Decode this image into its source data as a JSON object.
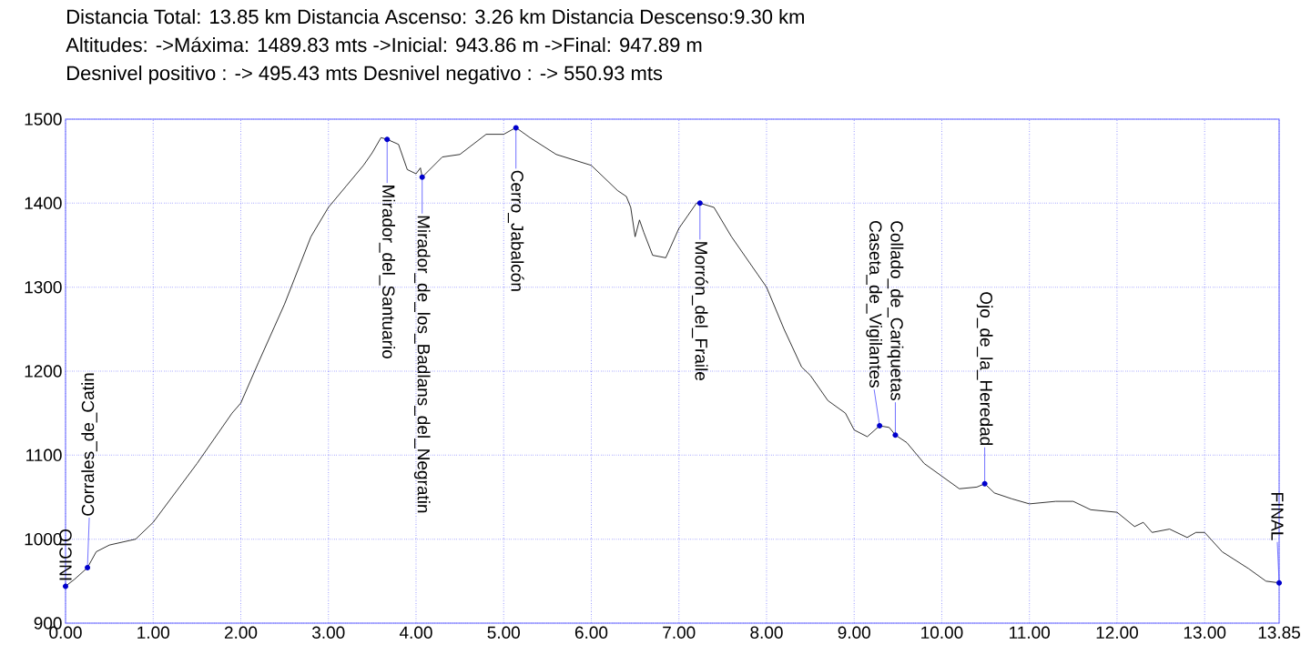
{
  "chart_data": {
    "type": "line",
    "title": "Distancia Total: 13.85 km    Distancia Ascenso: 3.26 km     Distancia Descenso:9.30 km",
    "subtitle": "Altitudes: ->Máxima: 1489.83 mts     ->Inicial: 943.86 m     ->Final: 947.89 m",
    "x": [
      0,
      0.1,
      0.25,
      0.35,
      0.5,
      0.8,
      1.0,
      1.5,
      1.9,
      2.0,
      2.2,
      2.5,
      2.8,
      3.0,
      3.2,
      3.4,
      3.5,
      3.6,
      3.67,
      3.8,
      3.9,
      4.0,
      4.05,
      4.07,
      4.3,
      4.5,
      4.8,
      5.0,
      5.14,
      5.3,
      5.6,
      6.0,
      6.3,
      6.4,
      6.45,
      6.5,
      6.55,
      6.6,
      6.7,
      6.85,
      7.0,
      7.1,
      7.2,
      7.24,
      7.4,
      7.6,
      7.9,
      8.0,
      8.2,
      8.4,
      8.5,
      8.7,
      8.9,
      9.0,
      9.15,
      9.29,
      9.4,
      9.47,
      9.6,
      9.8,
      10.0,
      10.2,
      10.4,
      10.49,
      10.6,
      10.8,
      11.0,
      11.3,
      11.5,
      11.7,
      12.0,
      12.2,
      12.3,
      12.4,
      12.6,
      12.8,
      12.9,
      13.0,
      13.2,
      13.5,
      13.7,
      13.85
    ],
    "series": [
      {
        "color": "#000000",
        "values": [
          944,
          952,
          966,
          985,
          993,
          1000,
          1020,
          1090,
          1150,
          1162,
          1210,
          1280,
          1360,
          1395,
          1420,
          1445,
          1460,
          1478,
          1476,
          1470,
          1440,
          1435,
          1442,
          1431,
          1455,
          1458,
          1482,
          1482,
          1490,
          1478,
          1458,
          1445,
          1415,
          1408,
          1395,
          1360,
          1380,
          1365,
          1338,
          1335,
          1370,
          1385,
          1400,
          1400,
          1395,
          1360,
          1315,
          1300,
          1250,
          1205,
          1195,
          1165,
          1150,
          1130,
          1122,
          1135,
          1133,
          1124,
          1115,
          1090,
          1075,
          1060,
          1062,
          1066,
          1055,
          1048,
          1042,
          1045,
          1045,
          1035,
          1032,
          1015,
          1020,
          1008,
          1012,
          1002,
          1008,
          1008,
          985,
          965,
          950,
          948
        ]
      }
    ],
    "xlim": [
      0,
      13.85
    ],
    "xticks": [
      {
        "value": 0,
        "label": "0.00"
      },
      {
        "value": 1,
        "label": "1.00"
      },
      {
        "value": 2,
        "label": "2.00"
      },
      {
        "value": 3,
        "label": "3.00"
      },
      {
        "value": 4,
        "label": "4.00"
      },
      {
        "value": 5,
        "label": "5.00"
      },
      {
        "value": 6,
        "label": "6.00"
      },
      {
        "value": 7,
        "label": "7.00"
      },
      {
        "value": 8,
        "label": "8.00"
      },
      {
        "value": 9,
        "label": "9.00"
      },
      {
        "value": 10,
        "label": "10.00"
      },
      {
        "value": 11,
        "label": "11.00"
      },
      {
        "value": 12,
        "label": "12.00"
      },
      {
        "value": 13,
        "label": "13.00"
      },
      {
        "value": 13.85,
        "label": "13.85"
      }
    ],
    "ylim": [
      900,
      1500
    ],
    "yticks": [
      900,
      1000,
      1100,
      1200,
      1300,
      1400,
      1500
    ],
    "grid": true,
    "annotations": [
      "Desnivel positivo : -> 495.43 mts        Desnivel negativo : ->  550.93 mts",
      {
        "text": "INICIO",
        "x": 0,
        "y": 943.86
      },
      {
        "text": "Corrales_de_Catin",
        "x": 0.25,
        "y": 966
      },
      {
        "text": "Mirador_del_Santuario",
        "x": 3.67,
        "y": 1476
      },
      {
        "text": "Mirador_de_los_Badlans_del_Negratin",
        "x": 4.07,
        "y": 1431
      },
      {
        "text": "Cerro_Jabalcón",
        "x": 5.14,
        "y": 1489.83
      },
      {
        "text": "Morrón_del_Fraile",
        "x": 7.24,
        "y": 1400
      },
      {
        "text": "Caseta_de_Vigilantes",
        "x": 9.29,
        "y": 1135
      },
      {
        "text": "Collado_de_Cariquetas",
        "x": 9.47,
        "y": 1124
      },
      {
        "text": "Ojo_de_la_Heredad",
        "x": 10.49,
        "y": 1066
      },
      {
        "text": "FINAL",
        "x": 13.85,
        "y": 947.89
      }
    ]
  }
}
